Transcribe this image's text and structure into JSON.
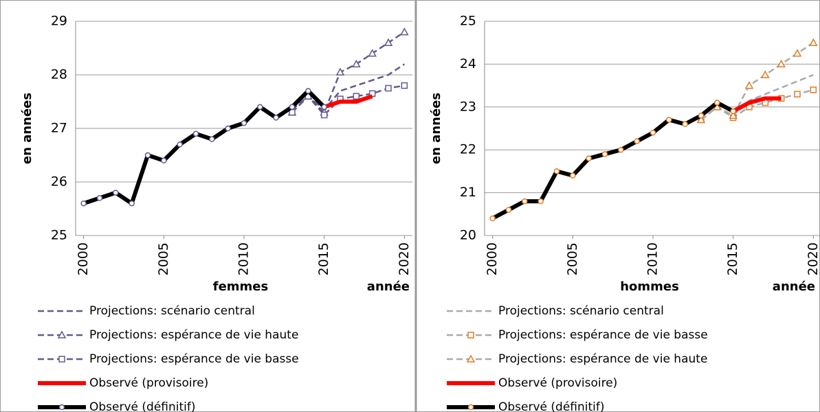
{
  "chart_data": [
    {
      "type": "line",
      "subtitle": "femmes",
      "xlabel": "année",
      "ylabel": "en années",
      "xlim": [
        1999.5,
        2020.5
      ],
      "ylim": [
        25,
        29
      ],
      "xticks": [
        2000,
        2005,
        2010,
        2015,
        2020
      ],
      "yticks": [
        25,
        26,
        27,
        28,
        29
      ],
      "grid": true,
      "x": [
        2000,
        2001,
        2002,
        2003,
        2004,
        2005,
        2006,
        2007,
        2008,
        2009,
        2010,
        2011,
        2012,
        2013,
        2014,
        2015,
        2016,
        2017,
        2018,
        2019,
        2020
      ],
      "series": [
        {
          "name": "Projections: scénario central",
          "color": "#65588a",
          "dash": true,
          "width": 2.5,
          "marker": null,
          "marker_color": null,
          "values": [
            null,
            null,
            null,
            null,
            null,
            null,
            null,
            null,
            null,
            null,
            null,
            null,
            null,
            27.35,
            27.6,
            27.35,
            27.7,
            27.8,
            27.9,
            28.0,
            28.2
          ]
        },
        {
          "name": "Projections: espérance de vie haute",
          "color": "#65588a",
          "dash": true,
          "width": 2.5,
          "marker": "triangle",
          "marker_color": "#65588a",
          "values": [
            null,
            null,
            null,
            null,
            null,
            null,
            null,
            null,
            null,
            null,
            null,
            null,
            null,
            27.3,
            27.6,
            27.3,
            28.05,
            28.2,
            28.4,
            28.6,
            28.8
          ]
        },
        {
          "name": "Projections: espérance de vie basse",
          "color": "#65588a",
          "dash": true,
          "width": 2.5,
          "marker": "square",
          "marker_color": "#65588a",
          "values": [
            null,
            null,
            null,
            null,
            null,
            null,
            null,
            null,
            null,
            null,
            null,
            null,
            null,
            27.3,
            27.6,
            27.25,
            27.55,
            27.6,
            27.65,
            27.75,
            27.8
          ]
        },
        {
          "name": "Observé (provisoire)",
          "color": "#ff0000",
          "dash": false,
          "width": 6,
          "marker": null,
          "marker_color": null,
          "values": [
            null,
            null,
            null,
            null,
            null,
            null,
            null,
            null,
            null,
            null,
            null,
            null,
            null,
            null,
            null,
            27.4,
            27.5,
            27.5,
            27.6,
            null,
            null
          ]
        },
        {
          "name": "Observé (définitif)",
          "color": "#000000",
          "dash": false,
          "width": 6,
          "marker": "circle",
          "marker_color": "#65588a",
          "values": [
            25.6,
            25.7,
            25.8,
            25.6,
            26.5,
            26.4,
            26.7,
            26.9,
            26.8,
            27.0,
            27.1,
            27.4,
            27.2,
            27.4,
            27.7,
            27.4,
            null,
            null,
            null,
            null,
            null
          ]
        }
      ]
    },
    {
      "type": "line",
      "subtitle": "hommes",
      "xlabel": "année",
      "ylabel": "en années",
      "xlim": [
        1999.5,
        2020.5
      ],
      "ylim": [
        20,
        25
      ],
      "xticks": [
        2000,
        2005,
        2010,
        2015,
        2020
      ],
      "yticks": [
        20,
        21,
        22,
        23,
        24,
        25
      ],
      "grid": true,
      "x": [
        2000,
        2001,
        2002,
        2003,
        2004,
        2005,
        2006,
        2007,
        2008,
        2009,
        2010,
        2011,
        2012,
        2013,
        2014,
        2015,
        2016,
        2017,
        2018,
        2019,
        2020
      ],
      "series": [
        {
          "name": "Projections: scénario central",
          "color": "#aaaaaa",
          "dash": true,
          "width": 2.5,
          "marker": null,
          "marker_color": null,
          "values": [
            null,
            null,
            null,
            null,
            null,
            null,
            null,
            null,
            null,
            null,
            null,
            null,
            null,
            22.7,
            23.0,
            22.8,
            23.15,
            23.3,
            23.45,
            23.6,
            23.75
          ]
        },
        {
          "name": "Projections: espérance de vie basse",
          "color": "#aaaaaa",
          "dash": true,
          "width": 2.5,
          "marker": "square",
          "marker_color": "#e07b20",
          "values": [
            null,
            null,
            null,
            null,
            null,
            null,
            null,
            null,
            null,
            null,
            null,
            null,
            null,
            22.7,
            23.0,
            22.75,
            23.0,
            23.1,
            23.2,
            23.3,
            23.4
          ]
        },
        {
          "name": "Projections: espérance de vie haute",
          "color": "#aaaaaa",
          "dash": true,
          "width": 2.5,
          "marker": "triangle",
          "marker_color": "#e07b20",
          "values": [
            null,
            null,
            null,
            null,
            null,
            null,
            null,
            null,
            null,
            null,
            null,
            null,
            null,
            22.7,
            23.0,
            22.8,
            23.5,
            23.75,
            24.0,
            24.25,
            24.5
          ]
        },
        {
          "name": "Observé (provisoire)",
          "color": "#ff0000",
          "dash": false,
          "width": 6,
          "marker": null,
          "marker_color": null,
          "values": [
            null,
            null,
            null,
            null,
            null,
            null,
            null,
            null,
            null,
            null,
            null,
            null,
            null,
            null,
            null,
            22.9,
            23.1,
            23.2,
            23.2,
            null,
            null
          ]
        },
        {
          "name": "Observé (définitif)",
          "color": "#000000",
          "dash": false,
          "width": 6,
          "marker": "circle",
          "marker_color": "#e07b20",
          "values": [
            20.4,
            20.6,
            20.8,
            20.8,
            21.5,
            21.4,
            21.8,
            21.9,
            22.0,
            22.2,
            22.4,
            22.7,
            22.6,
            22.8,
            23.1,
            22.9,
            null,
            null,
            null,
            null,
            null
          ]
        }
      ]
    }
  ]
}
